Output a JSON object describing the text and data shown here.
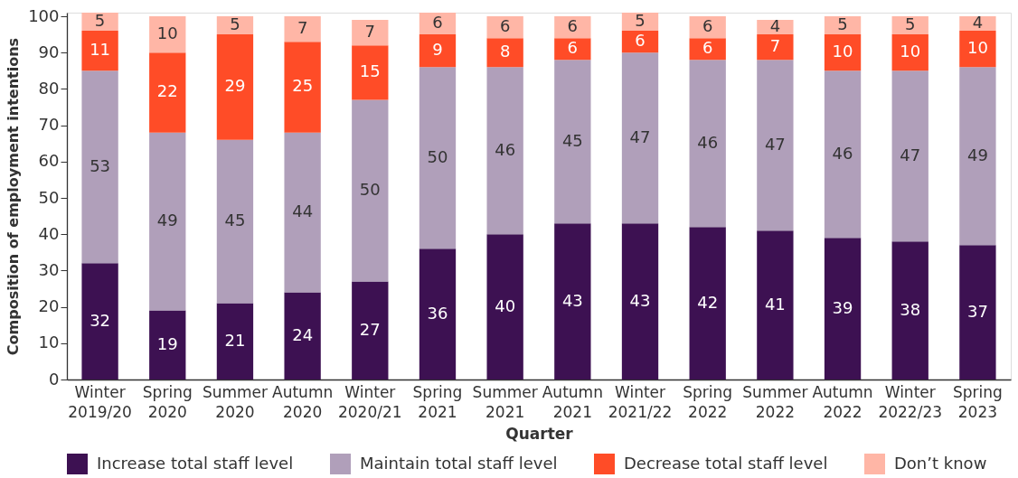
{
  "chart_data": {
    "type": "bar",
    "stacked": true,
    "xlabel": "Quarter",
    "ylabel": "Composition of employment intentions",
    "categories": [
      "Winter 2019/20",
      "Spring 2020",
      "Summer 2020",
      "Autumn 2020",
      "Winter 2020/21",
      "Spring 2021",
      "Summer 2021",
      "Autumn 2021",
      "Winter 2021/22",
      "Spring 2022",
      "Summer 2022",
      "Autumn 2022",
      "Winter 2022/23",
      "Spring 2023"
    ],
    "series": [
      {
        "name": "Increase total staff level",
        "color": "#3d1152",
        "values": [
          32,
          19,
          21,
          24,
          27,
          36,
          40,
          43,
          43,
          42,
          41,
          39,
          38,
          37
        ]
      },
      {
        "name": "Maintain total staff level",
        "color": "#b09fba",
        "values": [
          53,
          49,
          45,
          44,
          50,
          50,
          46,
          45,
          47,
          46,
          47,
          46,
          47,
          49
        ]
      },
      {
        "name": "Decrease total staff level",
        "color": "#ff4c27",
        "values": [
          11,
          22,
          29,
          25,
          15,
          9,
          8,
          6,
          6,
          6,
          7,
          10,
          10,
          10
        ]
      },
      {
        "name": "Don’t know",
        "color": "#ffb6a6",
        "values": [
          5,
          10,
          5,
          7,
          7,
          6,
          6,
          6,
          5,
          6,
          4,
          5,
          5,
          4
        ]
      }
    ],
    "ylim": [
      0,
      101
    ],
    "yticks": [
      0,
      10,
      20,
      30,
      40,
      50,
      60,
      70,
      80,
      90,
      100
    ],
    "grid": false,
    "legend": "bottom",
    "data_labels": true
  }
}
